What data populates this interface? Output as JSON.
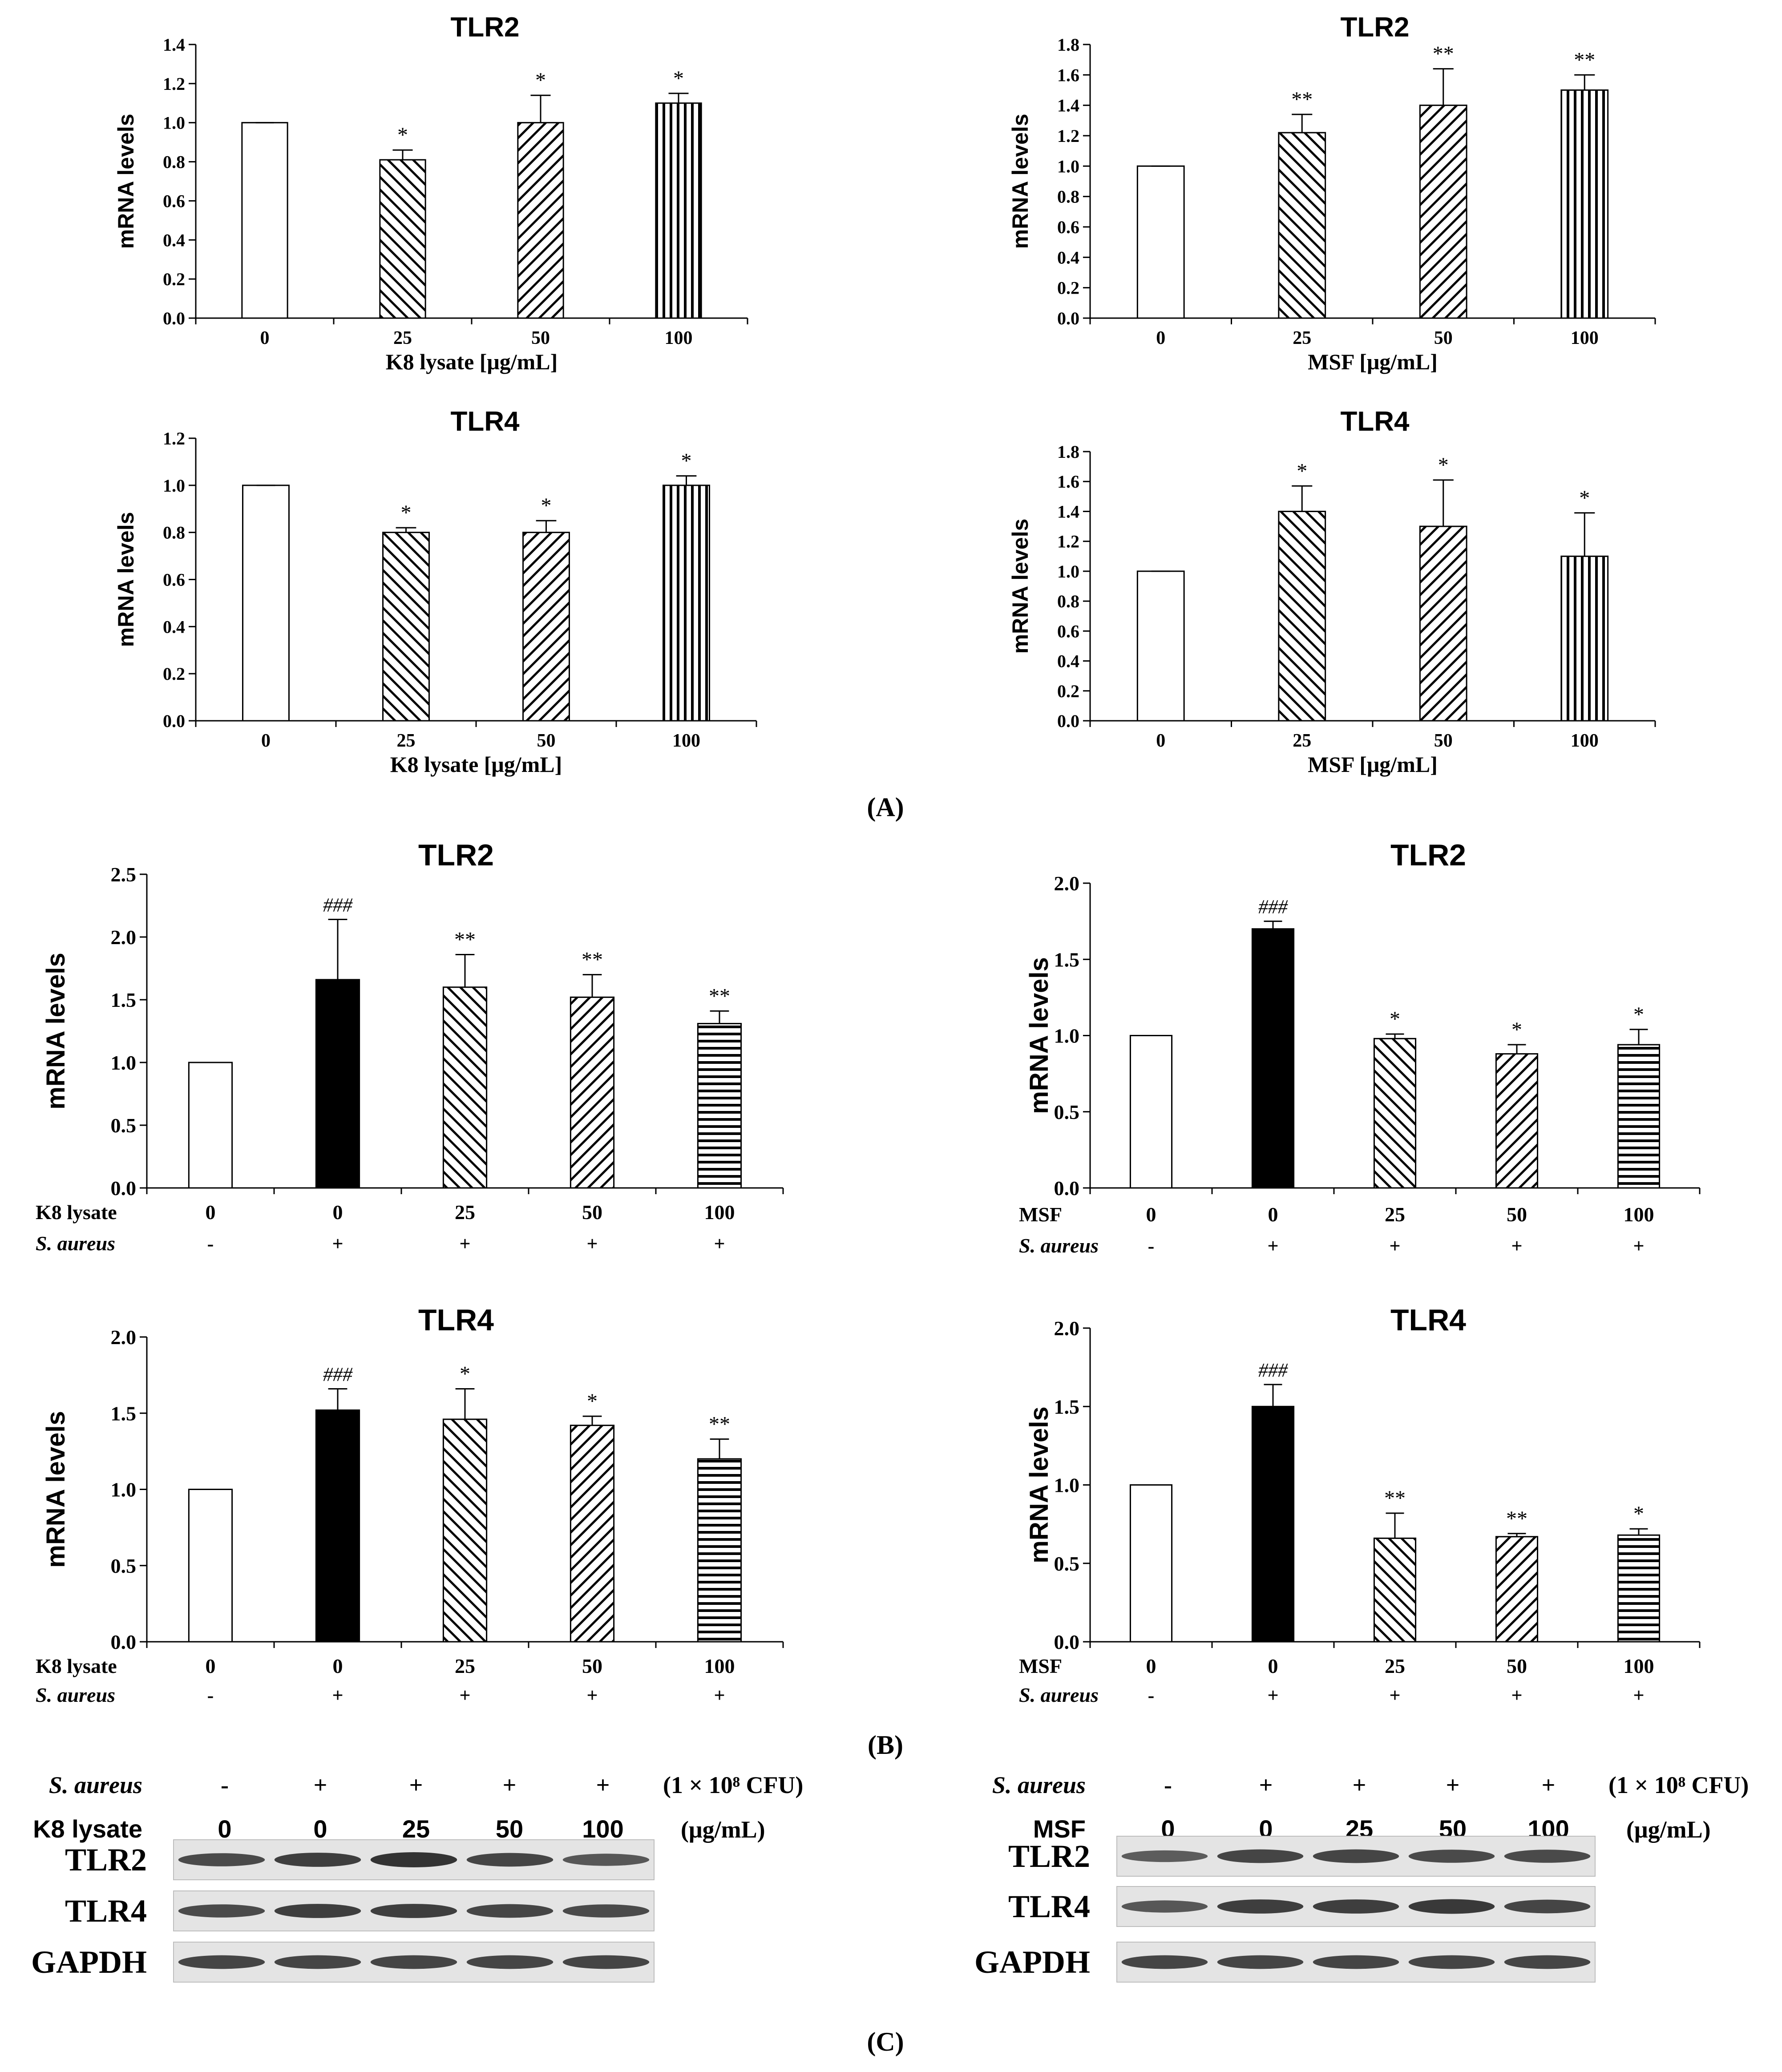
{
  "panel_labels": {
    "A": "(A)",
    "B": "(B)",
    "C": "(C)"
  },
  "colors": {
    "bar_edge": "#000000",
    "bar_fill_white": "#ffffff",
    "bar_fill_black": "#000000",
    "blot_band": "#333333",
    "blot_bg": "#e4e4e4"
  },
  "chart_data": [
    {
      "id": "A1",
      "type": "bar",
      "title": "TLR2",
      "xlabel": "K8 lysate [μg/mL]",
      "ylabel": "mRNA levels",
      "ylim": [
        0,
        1.4
      ],
      "ytick_step": 0.2,
      "ytick_decimals": 1,
      "categories": [
        "0",
        "25",
        "50",
        "100"
      ],
      "values": [
        1.0,
        0.81,
        1.0,
        1.1
      ],
      "errors": [
        0,
        0.05,
        0.14,
        0.05
      ],
      "significance": [
        "",
        "*",
        "*",
        "*"
      ],
      "patterns": [
        "white",
        "diag2",
        "diag1",
        "vert"
      ]
    },
    {
      "id": "A2",
      "type": "bar",
      "title": "TLR2",
      "xlabel": "MSF [μg/mL]",
      "ylabel": "mRNA levels",
      "ylim": [
        0,
        1.8
      ],
      "ytick_step": 0.2,
      "ytick_decimals": 1,
      "categories": [
        "0",
        "25",
        "50",
        "100"
      ],
      "values": [
        1.0,
        1.22,
        1.4,
        1.5
      ],
      "errors": [
        0,
        0.12,
        0.24,
        0.1
      ],
      "significance": [
        "",
        "**",
        "**",
        "**"
      ],
      "patterns": [
        "white",
        "diag2",
        "diag1",
        "vert"
      ]
    },
    {
      "id": "A3",
      "type": "bar",
      "title": "TLR4",
      "xlabel": "K8 lysate [μg/mL]",
      "ylabel": "mRNA levels",
      "ylim": [
        0,
        1.2
      ],
      "ytick_step": 0.2,
      "ytick_decimals": 1,
      "categories": [
        "0",
        "25",
        "50",
        "100"
      ],
      "values": [
        1.0,
        0.8,
        0.8,
        1.0
      ],
      "errors": [
        0,
        0.02,
        0.05,
        0.04
      ],
      "significance": [
        "",
        "*",
        "*",
        "*"
      ],
      "patterns": [
        "white",
        "diag2",
        "diag1",
        "vert"
      ]
    },
    {
      "id": "A4",
      "type": "bar",
      "title": "TLR4",
      "xlabel": "MSF [μg/mL]",
      "ylabel": "mRNA levels",
      "ylim": [
        0,
        1.8
      ],
      "ytick_step": 0.2,
      "ytick_decimals": 1,
      "categories": [
        "0",
        "25",
        "50",
        "100"
      ],
      "values": [
        1.0,
        1.4,
        1.3,
        1.1
      ],
      "errors": [
        0,
        0.17,
        0.31,
        0.29
      ],
      "significance": [
        "",
        "*",
        "*",
        "*"
      ],
      "patterns": [
        "white",
        "diag2",
        "diag1",
        "vert"
      ]
    },
    {
      "id": "B1",
      "type": "bar",
      "title": "TLR2",
      "ylabel": "mRNA levels",
      "ylim": [
        0,
        2.5
      ],
      "ytick_step": 0.5,
      "ytick_decimals": 1,
      "row1_label": "K8 lysate",
      "row2_label": "S. aureus",
      "categories": [
        "0",
        "0",
        "25",
        "50",
        "100"
      ],
      "row2": [
        "-",
        "+",
        "+",
        "+",
        "+"
      ],
      "values": [
        1.0,
        1.66,
        1.6,
        1.52,
        1.31
      ],
      "errors": [
        0,
        0.48,
        0.26,
        0.18,
        0.1
      ],
      "significance": [
        "",
        "###",
        "**",
        "**",
        "**"
      ],
      "patterns": [
        "white",
        "black",
        "diag2",
        "diag1",
        "horiz"
      ]
    },
    {
      "id": "B2",
      "type": "bar",
      "title": "TLR2",
      "ylabel": "mRNA levels",
      "ylim": [
        0,
        2.0
      ],
      "ytick_step": 0.5,
      "ytick_decimals": 1,
      "row1_label": "MSF",
      "row2_label": "S. aureus",
      "categories": [
        "0",
        "0",
        "25",
        "50",
        "100"
      ],
      "row2": [
        "-",
        "+",
        "+",
        "+",
        "+"
      ],
      "values": [
        1.0,
        1.7,
        0.98,
        0.88,
        0.94
      ],
      "errors": [
        0,
        0.05,
        0.03,
        0.06,
        0.1
      ],
      "significance": [
        "",
        "###",
        "*",
        "*",
        "*"
      ],
      "patterns": [
        "white",
        "black",
        "diag2",
        "diag1",
        "horiz"
      ]
    },
    {
      "id": "B3",
      "type": "bar",
      "title": "TLR4",
      "ylabel": "mRNA levels",
      "ylim": [
        0,
        2.0
      ],
      "ytick_step": 0.5,
      "ytick_decimals": 1,
      "row1_label": "K8 lysate",
      "row2_label": "S. aureus",
      "categories": [
        "0",
        "0",
        "25",
        "50",
        "100"
      ],
      "row2": [
        "-",
        "+",
        "+",
        "+",
        "+"
      ],
      "values": [
        1.0,
        1.52,
        1.46,
        1.42,
        1.2
      ],
      "errors": [
        0,
        0.14,
        0.2,
        0.06,
        0.13
      ],
      "significance": [
        "",
        "###",
        "*",
        "*",
        "**"
      ],
      "patterns": [
        "white",
        "black",
        "diag2",
        "diag1",
        "horiz"
      ]
    },
    {
      "id": "B4",
      "type": "bar",
      "title": "TLR4",
      "ylabel": "mRNA levels",
      "ylim": [
        0,
        2.0
      ],
      "ytick_step": 0.5,
      "ytick_decimals": 1,
      "row1_label": "MSF",
      "row2_label": "S. aureus",
      "categories": [
        "0",
        "0",
        "25",
        "50",
        "100"
      ],
      "row2": [
        "-",
        "+",
        "+",
        "+",
        "+"
      ],
      "values": [
        1.0,
        1.5,
        0.66,
        0.67,
        0.68
      ],
      "errors": [
        0,
        0.14,
        0.16,
        0.02,
        0.04
      ],
      "significance": [
        "",
        "###",
        "**",
        "**",
        "*"
      ],
      "patterns": [
        "white",
        "black",
        "diag2",
        "diag1",
        "horiz"
      ]
    }
  ],
  "blots": [
    {
      "row1_label": "S. aureus",
      "row1": [
        "-",
        "+",
        "+",
        "+",
        "+"
      ],
      "row1_unit": "(1 × 10⁸ CFU)",
      "row2_label": "K8 lysate",
      "row2": [
        "0",
        "0",
        "25",
        "50",
        "100"
      ],
      "row2_unit": "(μg/mL)",
      "bands": [
        {
          "label": "TLR2",
          "intensity": [
            0.8,
            0.9,
            1.0,
            0.85,
            0.7
          ]
        },
        {
          "label": "TLR4",
          "intensity": [
            0.8,
            0.9,
            0.9,
            0.85,
            0.8
          ]
        },
        {
          "label": "GAPDH",
          "intensity": [
            0.85,
            0.85,
            0.85,
            0.85,
            0.85
          ]
        }
      ]
    },
    {
      "row1_label": "S. aureus",
      "row1": [
        "-",
        "+",
        "+",
        "+",
        "+"
      ],
      "row1_unit": "(1 × 10⁸ CFU)",
      "row2_label": "MSF",
      "row2": [
        "0",
        "0",
        "25",
        "50",
        "100"
      ],
      "row2_unit": "(μg/mL)",
      "bands": [
        {
          "label": "TLR2",
          "intensity": [
            0.65,
            0.85,
            0.85,
            0.8,
            0.8
          ]
        },
        {
          "label": "TLR4",
          "intensity": [
            0.7,
            0.9,
            0.9,
            0.95,
            0.85
          ]
        },
        {
          "label": "GAPDH",
          "intensity": [
            0.85,
            0.85,
            0.85,
            0.85,
            0.85
          ]
        }
      ]
    }
  ]
}
